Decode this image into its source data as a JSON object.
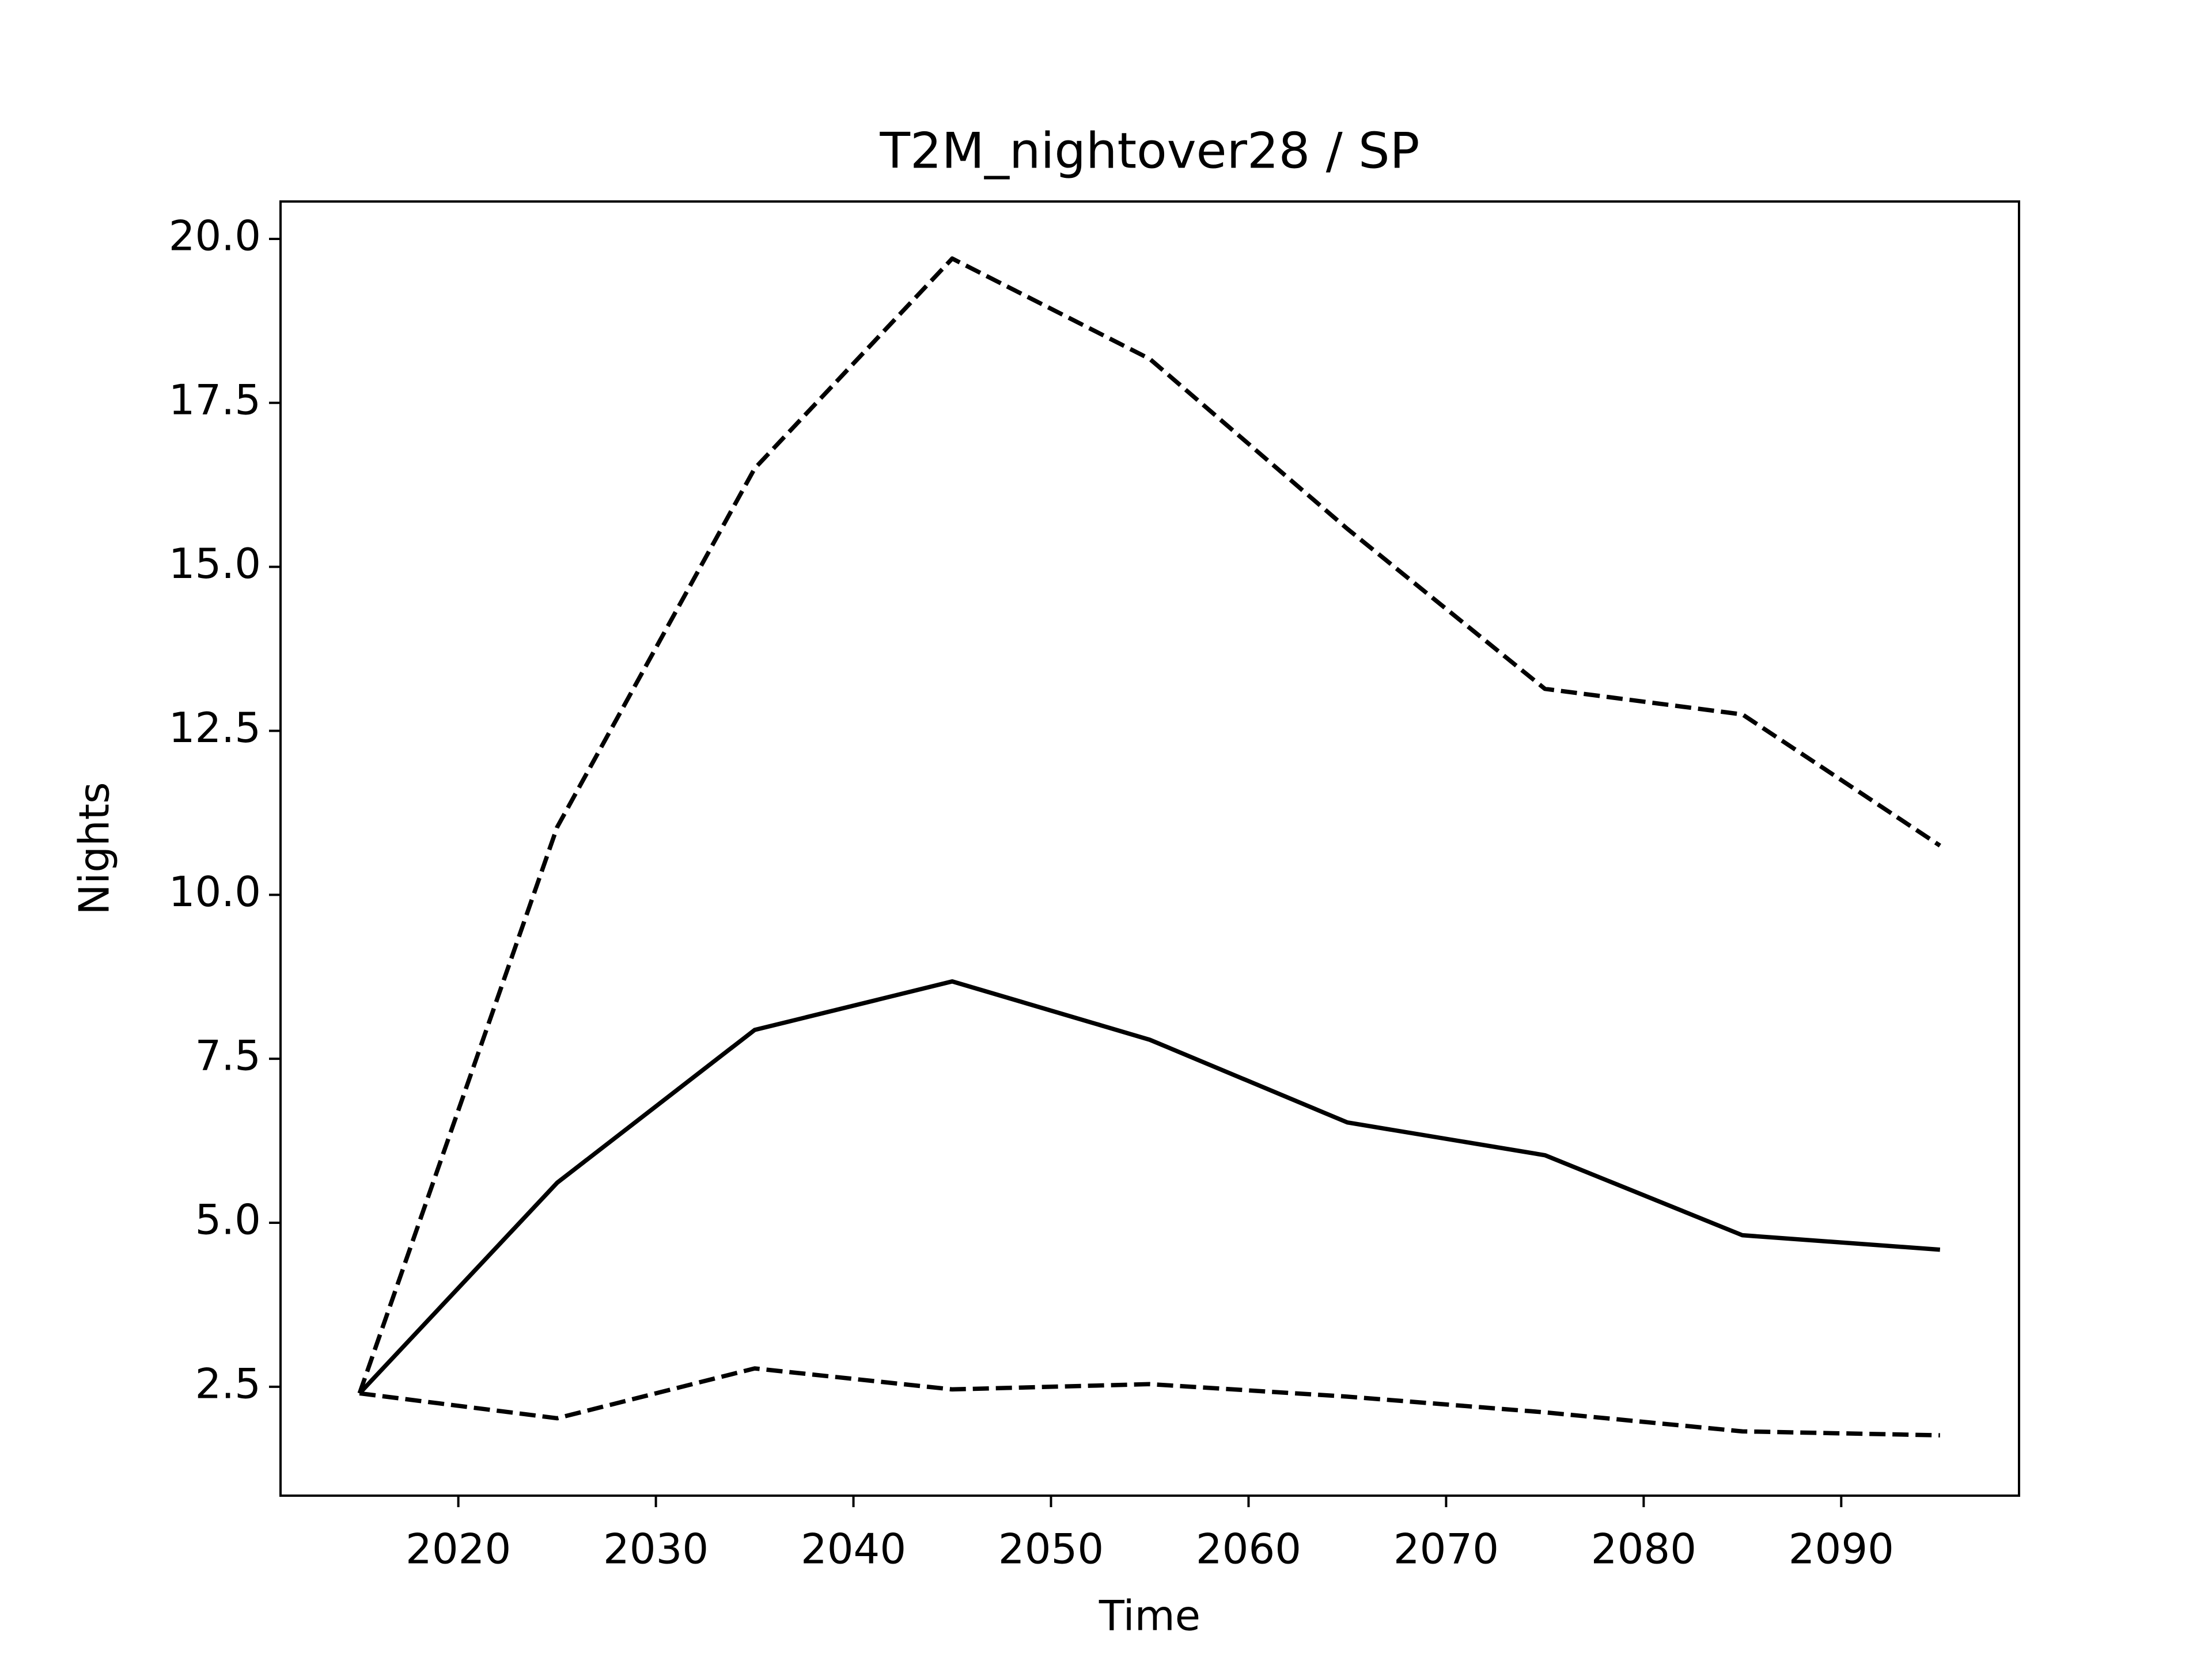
{
  "chart_data": {
    "type": "line",
    "title": "T2M_nightover28 / SP",
    "x_label": "Time",
    "y_label": "Nights",
    "x": [
      2015,
      2025,
      2035,
      2045,
      2055,
      2065,
      2075,
      2085,
      2095
    ],
    "series": [
      {
        "color": "#000000",
        "linestyle": "solid",
        "values": [
          2.4,
          5.61,
          7.94,
          8.68,
          7.79,
          6.53,
          6.03,
          4.81,
          4.59
        ]
      },
      {
        "color": "#000000",
        "linestyle": "dashed",
        "values": [
          2.4,
          11.03,
          16.5,
          19.7,
          18.17,
          15.58,
          13.14,
          12.75,
          10.75
        ]
      },
      {
        "color": "#000000",
        "linestyle": "dashed",
        "values": [
          2.4,
          2.02,
          2.78,
          2.46,
          2.54,
          2.35,
          2.11,
          1.82,
          1.76
        ]
      }
    ],
    "xlim": [
      2011,
      2099
    ],
    "xticks": [
      2020,
      2030,
      2040,
      2050,
      2060,
      2070,
      2080,
      2090
    ],
    "ylim": [
      0.84,
      20.57
    ],
    "yticks": [
      2.5,
      {
        "value": 5,
        "label": "5.0"
      },
      7.5,
      {
        "value": 10,
        "label": "10.0"
      },
      12.5,
      {
        "value": 15,
        "label": "15.0"
      },
      17.5,
      {
        "value": 20,
        "label": "20.0"
      }
    ],
    "grid": false
  }
}
